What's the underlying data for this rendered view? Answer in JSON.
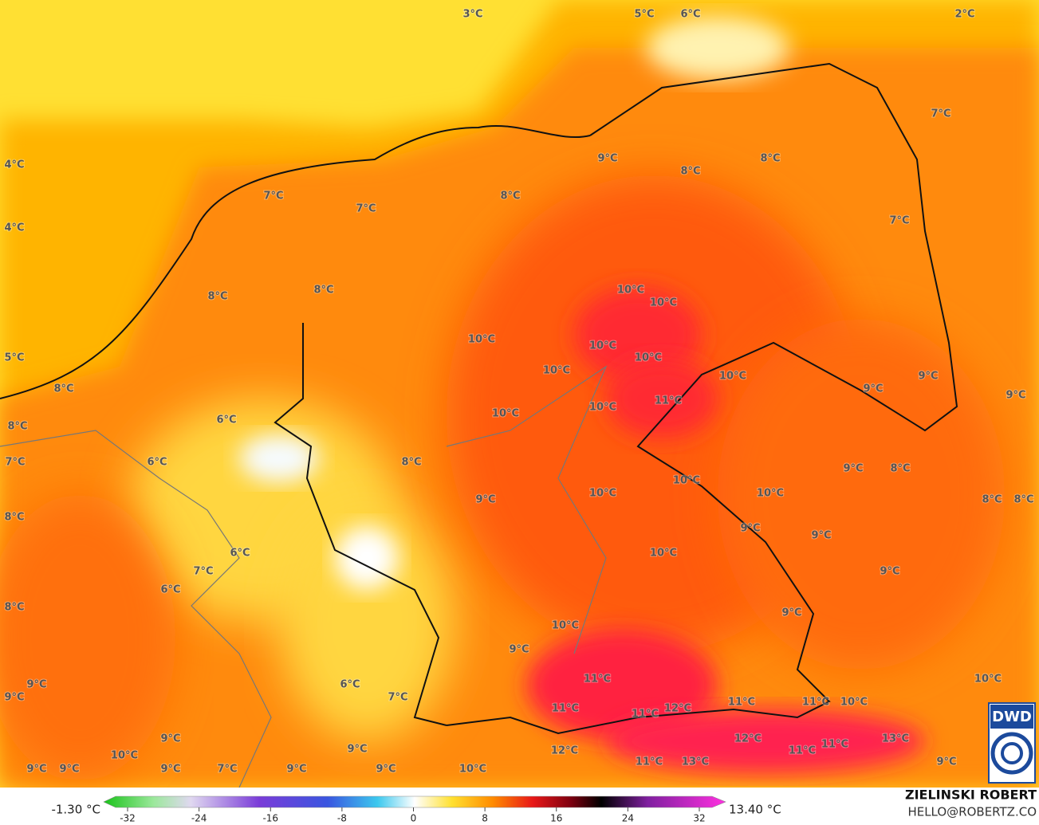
{
  "map": {
    "labels": [
      "3°C",
      "5°C",
      "6°C",
      "2°C",
      "4°C",
      "4°C",
      "5°C",
      "7°C",
      "9°C",
      "8°C",
      "8°C",
      "8°C",
      "7°C",
      "7°C",
      "7°C",
      "8°C",
      "8°C",
      "10°C",
      "10°C",
      "10°C",
      "10°C",
      "10°C",
      "10°C",
      "10°C",
      "9°C",
      "9°C",
      "9°C",
      "8°C",
      "11°C",
      "6°C",
      "10°C",
      "10°C",
      "8°C",
      "7°C",
      "6°C",
      "8°C",
      "9°C",
      "8°C",
      "10°C",
      "10°C",
      "9°C",
      "10°C",
      "8°C",
      "8°C",
      "8°C",
      "9°C",
      "9°C",
      "6°C",
      "10°C",
      "9°C",
      "7°C",
      "6°C",
      "8°C",
      "9°C",
      "10°C",
      "9°C",
      "11°C",
      "6°C",
      "10°C",
      "9°C",
      "9°C",
      "7°C",
      "11°C",
      "11°C",
      "12°C",
      "11°C",
      "11°C",
      "10°C",
      "12°C",
      "13°C",
      "12°C",
      "11°C",
      "11°C",
      "9°C",
      "10°C",
      "9°C",
      "11°C",
      "13°C",
      "9°C",
      "9°C",
      "9°C",
      "9°C",
      "7°C",
      "9°C",
      "9°C",
      "10°C"
    ]
  },
  "colorbar": {
    "min_label": "-1.30 °C",
    "max_label": "13.40 °C",
    "ticks": [
      -32,
      -24,
      -16,
      -8,
      0,
      8,
      16,
      24,
      32
    ]
  },
  "credit": {
    "name": "ZIELINSKI ROBERT",
    "email": "HELLO@ROBERTZ.CO"
  },
  "logo": "DWD"
}
